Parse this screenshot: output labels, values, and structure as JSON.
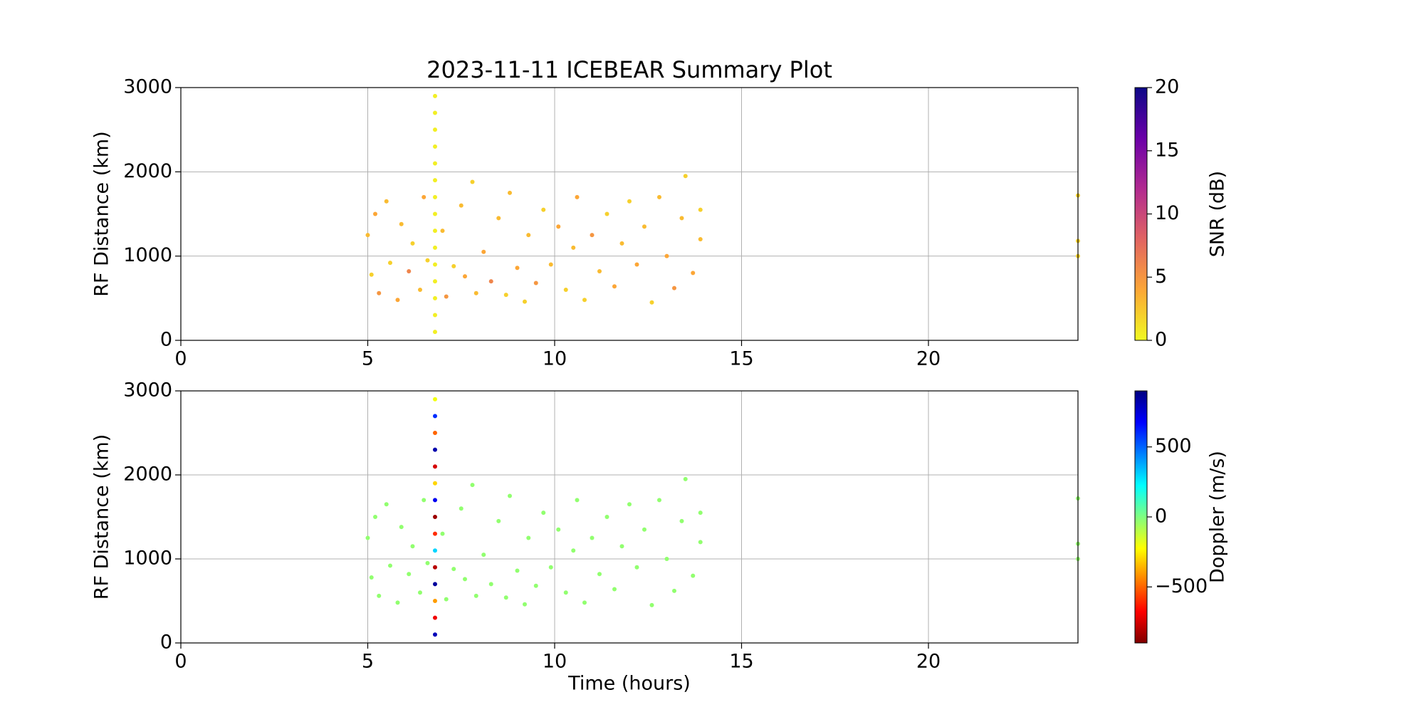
{
  "chart_data": [
    {
      "type": "scatter",
      "title": "2023-11-11 ICEBEAR Summary Plot",
      "y_label": "RF Distance (km)",
      "xlim": [
        0,
        24
      ],
      "xticks": [
        0,
        5,
        10,
        15,
        20
      ],
      "ylim": [
        0,
        3000
      ],
      "yticks": [
        0,
        1000,
        2000,
        3000
      ],
      "grid": true,
      "x": [
        5.0,
        5.1,
        5.2,
        5.3,
        5.5,
        5.6,
        5.8,
        5.9,
        6.1,
        6.2,
        6.4,
        6.5,
        6.6,
        7.0,
        7.1,
        7.3,
        7.5,
        7.6,
        7.8,
        7.9,
        8.1,
        8.3,
        8.5,
        8.7,
        8.8,
        9.0,
        9.2,
        9.3,
        9.5,
        9.7,
        9.9,
        10.1,
        10.3,
        10.5,
        10.6,
        10.8,
        11.0,
        11.2,
        11.4,
        11.6,
        11.8,
        12.0,
        12.2,
        12.4,
        12.6,
        12.8,
        13.0,
        13.2,
        13.4,
        13.5,
        13.7,
        13.9,
        13.9,
        24,
        24,
        24,
        6.8,
        6.8,
        6.8,
        6.8,
        6.8,
        6.8,
        6.8,
        6.8,
        6.8,
        6.8,
        6.8,
        6.8,
        6.8,
        6.8,
        6.8
      ],
      "y": [
        1250,
        780,
        1500,
        560,
        1650,
        920,
        480,
        1380,
        820,
        1150,
        600,
        1700,
        950,
        1300,
        520,
        880,
        1600,
        760,
        1880,
        560,
        1050,
        700,
        1450,
        540,
        1750,
        860,
        460,
        1250,
        680,
        1550,
        900,
        1350,
        600,
        1100,
        1700,
        480,
        1250,
        820,
        1500,
        640,
        1150,
        1650,
        900,
        1350,
        450,
        1700,
        1000,
        620,
        1450,
        1950,
        800,
        1200,
        1550,
        1720,
        1180,
        1000,
        100,
        300,
        500,
        700,
        900,
        1100,
        1300,
        1500,
        1700,
        1900,
        2100,
        2300,
        2500,
        2700,
        2900
      ],
      "c": [
        3,
        2,
        4,
        5,
        3,
        2,
        4,
        3,
        6,
        2,
        3,
        4,
        2,
        3,
        5,
        2,
        3,
        4,
        2,
        3,
        4,
        6,
        3,
        2,
        3,
        4,
        2,
        3,
        5,
        2,
        3,
        4,
        2,
        3,
        4,
        2,
        5,
        3,
        2,
        4,
        3,
        2,
        4,
        3,
        2,
        3,
        4,
        5,
        3,
        2,
        4,
        3,
        2,
        2,
        2,
        2,
        0.5,
        0.5,
        0.5,
        0.5,
        0.5,
        0.5,
        0.5,
        0.5,
        0.5,
        0.5,
        0.5,
        0.5,
        0.5,
        0.5,
        0.5
      ],
      "colorbar": {
        "label": "SNR (dB)",
        "clim": [
          0,
          20
        ],
        "ticks": [
          0,
          5,
          10,
          15,
          20
        ],
        "colors": [
          "#f0f921",
          "#fca636",
          "#e16462",
          "#b12a90",
          "#6a00a8",
          "#0d0887"
        ]
      }
    },
    {
      "type": "scatter",
      "y_label": "RF Distance (km)",
      "x_label": "Time (hours)",
      "xlim": [
        0,
        24
      ],
      "xticks": [
        0,
        5,
        10,
        15,
        20
      ],
      "ylim": [
        0,
        3000
      ],
      "yticks": [
        0,
        1000,
        2000,
        3000
      ],
      "grid": true,
      "x": [
        5.0,
        5.1,
        5.2,
        5.3,
        5.5,
        5.6,
        5.8,
        5.9,
        6.1,
        6.2,
        6.4,
        6.5,
        6.6,
        7.0,
        7.1,
        7.3,
        7.5,
        7.6,
        7.8,
        7.9,
        8.1,
        8.3,
        8.5,
        8.7,
        8.8,
        9.0,
        9.2,
        9.3,
        9.5,
        9.7,
        9.9,
        10.1,
        10.3,
        10.5,
        10.6,
        10.8,
        11.0,
        11.2,
        11.4,
        11.6,
        11.8,
        12.0,
        12.2,
        12.4,
        12.6,
        12.8,
        13.0,
        13.2,
        13.4,
        13.5,
        13.7,
        13.9,
        13.9,
        24,
        24,
        24,
        6.8,
        6.8,
        6.8,
        6.8,
        6.8,
        6.8,
        6.8,
        6.8,
        6.8,
        6.8,
        6.8,
        6.8,
        6.8,
        6.8,
        6.8
      ],
      "y": [
        1250,
        780,
        1500,
        560,
        1650,
        920,
        480,
        1380,
        820,
        1150,
        600,
        1700,
        950,
        1300,
        520,
        880,
        1600,
        760,
        1880,
        560,
        1050,
        700,
        1450,
        540,
        1750,
        860,
        460,
        1250,
        680,
        1550,
        900,
        1350,
        600,
        1100,
        1700,
        480,
        1250,
        820,
        1500,
        640,
        1150,
        1650,
        900,
        1350,
        450,
        1700,
        1000,
        620,
        1450,
        1950,
        800,
        1200,
        1550,
        1720,
        1180,
        1000,
        100,
        300,
        500,
        700,
        900,
        1100,
        1300,
        1500,
        1700,
        1900,
        2100,
        2300,
        2500,
        2700,
        2900
      ],
      "c": [
        -30,
        -30,
        -30,
        -30,
        -30,
        -30,
        -30,
        -30,
        -30,
        -30,
        -30,
        -30,
        -30,
        -30,
        -30,
        -30,
        -30,
        -30,
        -30,
        -30,
        -30,
        -30,
        -30,
        -30,
        -30,
        -30,
        -30,
        -30,
        -30,
        -30,
        -30,
        -30,
        -30,
        -30,
        -30,
        -30,
        -30,
        -30,
        -30,
        -30,
        -30,
        -30,
        -30,
        -30,
        -30,
        -30,
        -30,
        -30,
        -30,
        -30,
        -30,
        -30,
        -30,
        -30,
        -30,
        -30,
        800,
        -700,
        -400,
        850,
        -800,
        300,
        -600,
        -850,
        700,
        -300,
        -750,
        820,
        -500,
        600,
        -200
      ],
      "colorbar": {
        "label": "Doppler (m/s)",
        "clim": [
          -900,
          900
        ],
        "ticks": [
          {
            "value": -500,
            "label": "−500"
          },
          0,
          500
        ],
        "colors": [
          "#800000",
          "#ff0000",
          "#ff8000",
          "#ffff00",
          "#80ff80",
          "#00ffff",
          "#0080ff",
          "#0000ff",
          "#000080"
        ]
      }
    }
  ]
}
